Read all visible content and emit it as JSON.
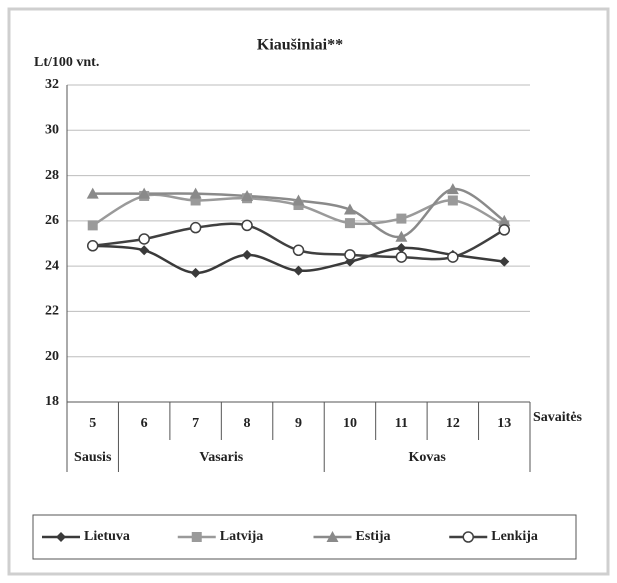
{
  "chart_data": {
    "type": "line",
    "title": "Kiaušiniai**",
    "ylabel": "Lt/100 vnt.",
    "xlabel": "Savaitės",
    "categories": [
      "5",
      "6",
      "7",
      "8",
      "9",
      "10",
      "11",
      "12",
      "13"
    ],
    "month_groups": [
      {
        "label": "Sausis",
        "count": 1
      },
      {
        "label": "Vasaris",
        "count": 4
      },
      {
        "label": "Kovas",
        "count": 4
      }
    ],
    "series": [
      {
        "name": "Lietuva",
        "color": "#3a3a3a",
        "marker": "diamond",
        "values": [
          24.9,
          24.7,
          23.7,
          24.5,
          23.8,
          24.2,
          24.8,
          24.5,
          24.2
        ]
      },
      {
        "name": "Latvija",
        "color": "#9a9a9a",
        "marker": "square",
        "values": [
          25.8,
          27.1,
          26.9,
          27.0,
          26.7,
          25.9,
          26.1,
          26.9,
          25.8
        ]
      },
      {
        "name": "Estija",
        "color": "#8a8a8a",
        "marker": "triangle",
        "values": [
          27.2,
          27.2,
          27.2,
          27.1,
          26.9,
          26.5,
          25.3,
          27.4,
          26.0
        ]
      },
      {
        "name": "Lenkija",
        "color": "#404040",
        "marker": "circle",
        "values": [
          24.9,
          25.2,
          25.7,
          25.8,
          24.7,
          24.5,
          24.4,
          24.4,
          25.6
        ]
      }
    ],
    "ylim": [
      18,
      32
    ],
    "yticks": [
      18,
      20,
      22,
      24,
      26,
      28,
      30,
      32
    ],
    "grid": true,
    "legend": "bottom"
  }
}
